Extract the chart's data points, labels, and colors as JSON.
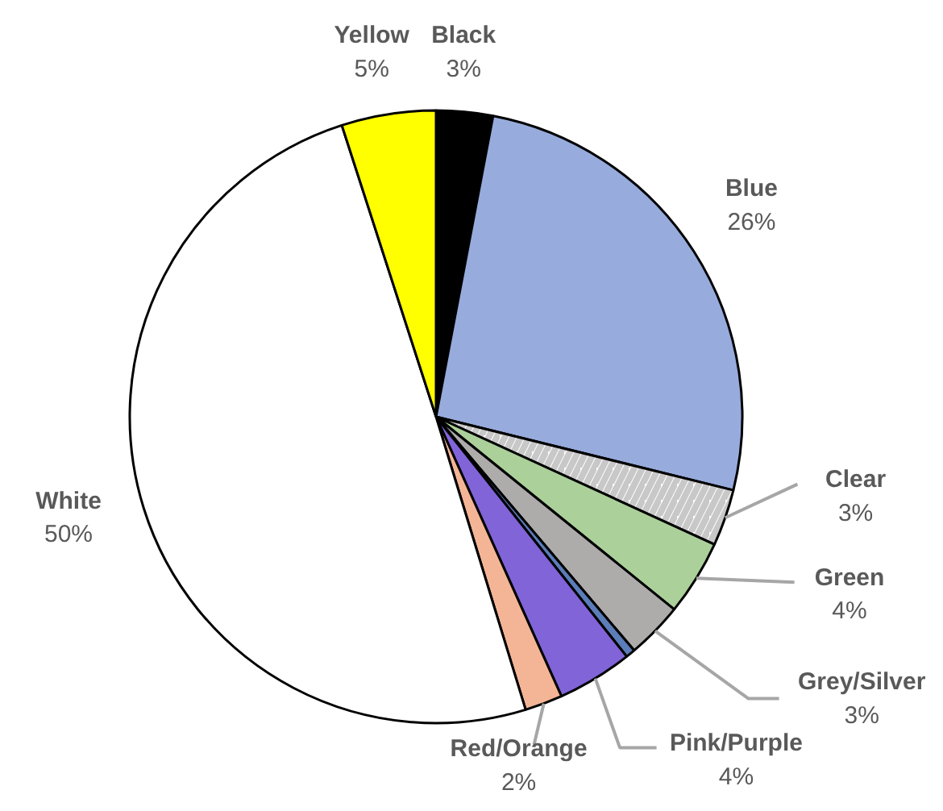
{
  "chart_data": {
    "type": "pie",
    "categories": [
      "Black",
      "Blue",
      "Clear",
      "Green",
      "Grey/Silver",
      null,
      "Pink/Purple",
      "Red/Orange",
      "White",
      "Yellow"
    ],
    "values": [
      3,
      26,
      3,
      4,
      3,
      0.5,
      4,
      2,
      50,
      5
    ],
    "colors": [
      "#000000",
      "#97abdc",
      "#ffffff",
      "#abd09a",
      "#aeabab",
      "#5b7db8",
      "#8064d8",
      "#f4b596",
      "#ffffff",
      "#ffff00"
    ],
    "value_labels": [
      "3%",
      "26%",
      "3%",
      "4%",
      "3%",
      null,
      "4%",
      "2%",
      "50%",
      "5%"
    ]
  }
}
